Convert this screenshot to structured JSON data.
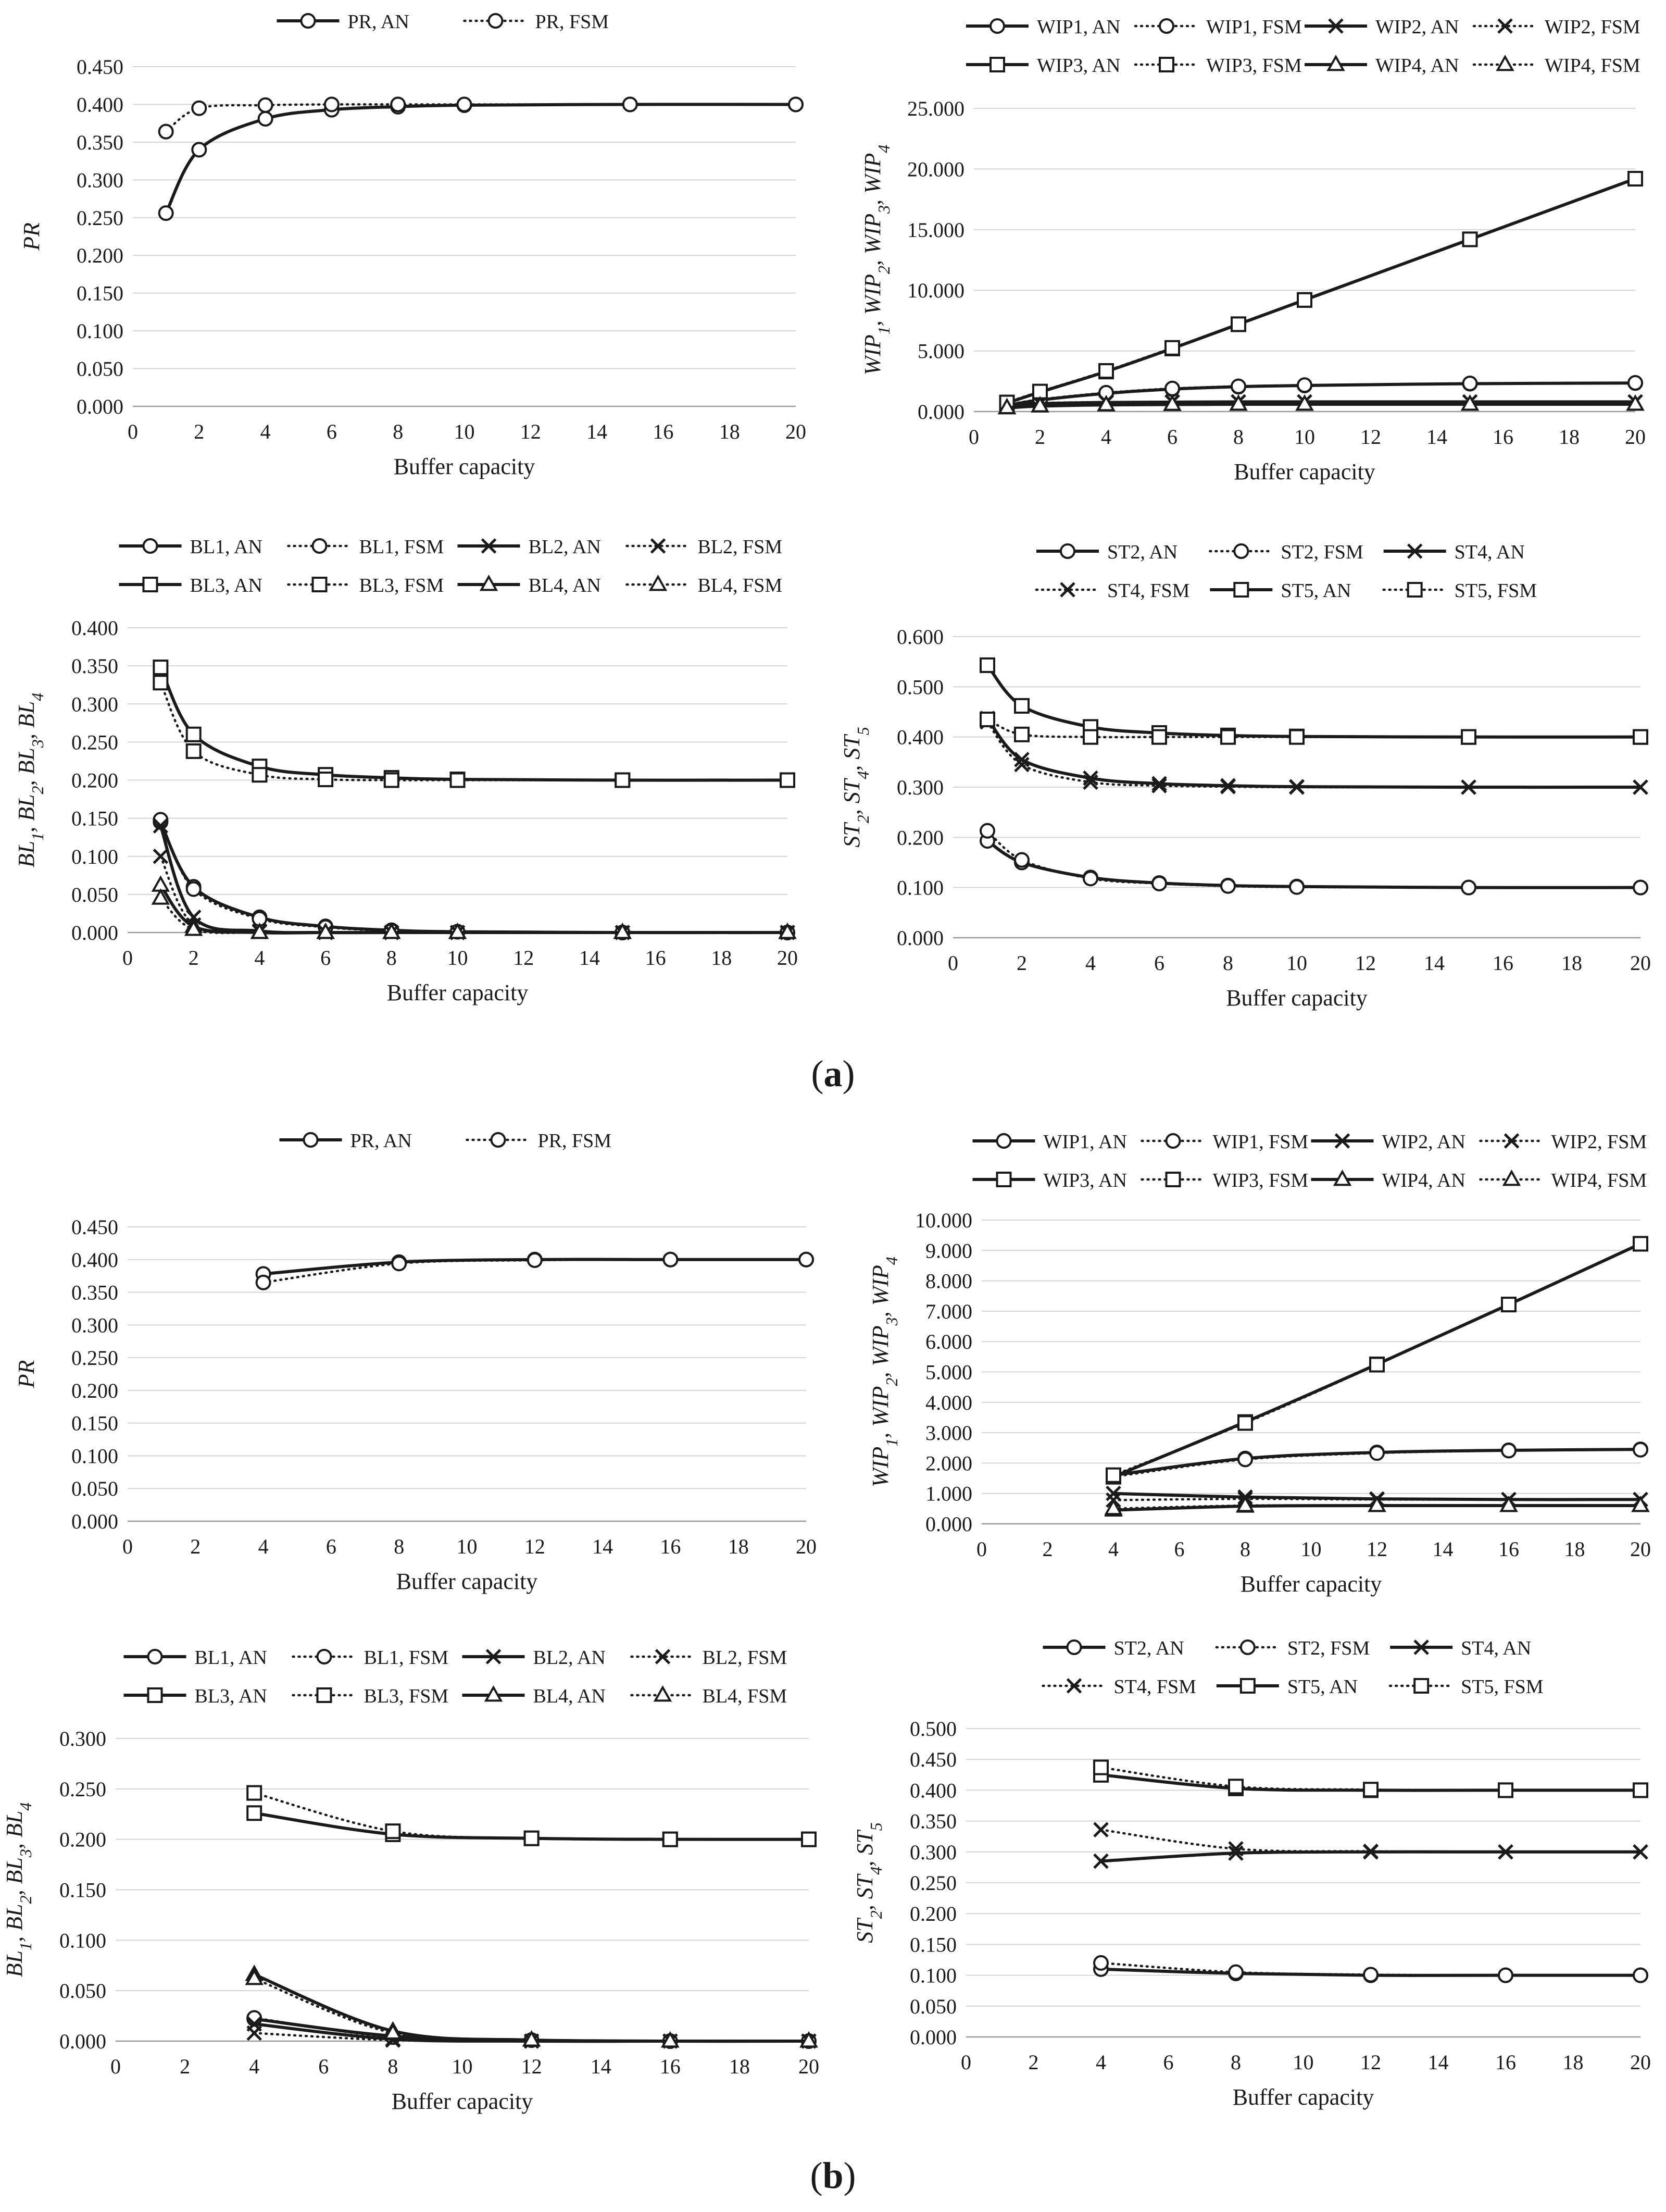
{
  "figure": {
    "panel_a_letter": "a",
    "panel_b_letter": "b"
  },
  "chart_data": [
    {
      "panel": "a",
      "type": "line",
      "title": "",
      "xlabel": "Buffer capacity",
      "ylabel": "PR",
      "xlim": [
        0,
        20
      ],
      "xticks": [
        0,
        2,
        4,
        6,
        8,
        10,
        12,
        14,
        16,
        18,
        20
      ],
      "ylim": [
        0,
        0.45
      ],
      "yticks": [
        0,
        0.05,
        0.1,
        0.15,
        0.2,
        0.25,
        0.3,
        0.35,
        0.4,
        0.45
      ],
      "ydecimals": 3,
      "grid": true,
      "legend_position": "top",
      "legend_columns": 2,
      "x": [
        1,
        2,
        4,
        6,
        8,
        10,
        15,
        20
      ],
      "series": [
        {
          "name": "PR, AN",
          "marker": "circle",
          "dash": "solid",
          "values": [
            0.256,
            0.34,
            0.381,
            0.393,
            0.397,
            0.399,
            0.4,
            0.4
          ]
        },
        {
          "name": "PR, FSM",
          "marker": "circle",
          "dash": "dotted",
          "values": [
            0.364,
            0.395,
            0.399,
            0.4,
            0.4,
            0.4,
            0.4,
            0.4
          ]
        }
      ]
    },
    {
      "panel": "a",
      "type": "line",
      "title": "",
      "xlabel": "Buffer capacity",
      "ylabel": "WIP1, WIP2, WIP3, WIP4",
      "xlim": [
        0,
        20
      ],
      "xticks": [
        0,
        2,
        4,
        6,
        8,
        10,
        12,
        14,
        16,
        18,
        20
      ],
      "ylim": [
        0,
        25
      ],
      "yticks": [
        0,
        5,
        10,
        15,
        20,
        25
      ],
      "ydecimals": 3,
      "grid": true,
      "legend_position": "top",
      "legend_columns": 4,
      "x": [
        1,
        2,
        4,
        6,
        8,
        10,
        15,
        20
      ],
      "series": [
        {
          "name": "WIP1, AN",
          "marker": "circle",
          "dash": "solid",
          "values": [
            0.5,
            0.95,
            1.5,
            1.85,
            2.05,
            2.15,
            2.3,
            2.35
          ]
        },
        {
          "name": "WIP1, FSM",
          "marker": "circle",
          "dash": "dotted",
          "values": [
            0.55,
            1.0,
            1.55,
            1.9,
            2.08,
            2.18,
            2.32,
            2.37
          ]
        },
        {
          "name": "WIP2, AN",
          "marker": "x",
          "dash": "solid",
          "values": [
            0.45,
            0.65,
            0.75,
            0.78,
            0.8,
            0.8,
            0.8,
            0.8
          ]
        },
        {
          "name": "WIP2, FSM",
          "marker": "x",
          "dash": "dotted",
          "values": [
            0.5,
            0.7,
            0.78,
            0.8,
            0.8,
            0.8,
            0.8,
            0.8
          ]
        },
        {
          "name": "WIP3, AN",
          "marker": "square",
          "dash": "solid",
          "values": [
            0.7,
            1.6,
            3.3,
            5.2,
            7.2,
            9.2,
            14.2,
            19.2
          ]
        },
        {
          "name": "WIP3, FSM",
          "marker": "square",
          "dash": "dotted",
          "values": [
            0.75,
            1.65,
            3.35,
            5.25,
            7.2,
            9.2,
            14.2,
            19.2
          ]
        },
        {
          "name": "WIP4, AN",
          "marker": "triangle",
          "dash": "solid",
          "values": [
            0.3,
            0.45,
            0.55,
            0.58,
            0.6,
            0.6,
            0.6,
            0.6
          ]
        },
        {
          "name": "WIP4, FSM",
          "marker": "triangle",
          "dash": "dotted",
          "values": [
            0.32,
            0.47,
            0.56,
            0.59,
            0.6,
            0.6,
            0.6,
            0.6
          ]
        }
      ]
    },
    {
      "panel": "a",
      "type": "line",
      "title": "",
      "xlabel": "Buffer capacity",
      "ylabel": "BL1, BL2, BL3, BL4",
      "xlim": [
        0,
        20
      ],
      "xticks": [
        0,
        2,
        4,
        6,
        8,
        10,
        12,
        14,
        16,
        18,
        20
      ],
      "ylim": [
        0,
        0.4
      ],
      "yticks": [
        0,
        0.05,
        0.1,
        0.15,
        0.2,
        0.25,
        0.3,
        0.35,
        0.4
      ],
      "ydecimals": 3,
      "grid": true,
      "legend_position": "top",
      "legend_columns": 4,
      "x": [
        1,
        2,
        4,
        6,
        8,
        10,
        15,
        20
      ],
      "series": [
        {
          "name": "BL1, AN",
          "marker": "circle",
          "dash": "solid",
          "values": [
            0.145,
            0.06,
            0.02,
            0.008,
            0.003,
            0.001,
            0.0,
            0.0
          ]
        },
        {
          "name": "BL1, FSM",
          "marker": "circle",
          "dash": "dotted",
          "values": [
            0.148,
            0.057,
            0.018,
            0.007,
            0.002,
            0.001,
            0.0,
            0.0
          ]
        },
        {
          "name": "BL2, AN",
          "marker": "x",
          "dash": "solid",
          "values": [
            0.14,
            0.02,
            0.002,
            0.0,
            0.0,
            0.0,
            0.0,
            0.0
          ]
        },
        {
          "name": "BL2, FSM",
          "marker": "x",
          "dash": "dotted",
          "values": [
            0.1,
            0.01,
            0.001,
            0.0,
            0.0,
            0.0,
            0.0,
            0.0
          ]
        },
        {
          "name": "BL3, AN",
          "marker": "square",
          "dash": "solid",
          "values": [
            0.348,
            0.26,
            0.218,
            0.207,
            0.203,
            0.201,
            0.2,
            0.2
          ]
        },
        {
          "name": "BL3, FSM",
          "marker": "square",
          "dash": "dotted",
          "values": [
            0.328,
            0.238,
            0.207,
            0.201,
            0.2,
            0.2,
            0.2,
            0.2
          ]
        },
        {
          "name": "BL4, AN",
          "marker": "triangle",
          "dash": "solid",
          "values": [
            0.062,
            0.008,
            0.0,
            0.0,
            0.0,
            0.0,
            0.0,
            0.0
          ]
        },
        {
          "name": "BL4, FSM",
          "marker": "triangle",
          "dash": "dotted",
          "values": [
            0.045,
            0.004,
            0.0,
            0.0,
            0.0,
            0.0,
            0.0,
            0.0
          ]
        }
      ]
    },
    {
      "panel": "a",
      "type": "line",
      "title": "",
      "xlabel": "Buffer capacity",
      "ylabel": "ST2, ST4, ST5",
      "xlim": [
        0,
        20
      ],
      "xticks": [
        0,
        2,
        4,
        6,
        8,
        10,
        12,
        14,
        16,
        18,
        20
      ],
      "ylim": [
        0,
        0.6
      ],
      "yticks": [
        0,
        0.1,
        0.2,
        0.3,
        0.4,
        0.5,
        0.6
      ],
      "ydecimals": 3,
      "grid": true,
      "legend_position": "top",
      "legend_columns": 3,
      "x": [
        1,
        2,
        4,
        6,
        8,
        10,
        15,
        20
      ],
      "series": [
        {
          "name": "ST2, AN",
          "marker": "circle",
          "dash": "solid",
          "values": [
            0.193,
            0.15,
            0.12,
            0.109,
            0.104,
            0.102,
            0.1,
            0.1
          ]
        },
        {
          "name": "ST2, FSM",
          "marker": "circle",
          "dash": "dotted",
          "values": [
            0.213,
            0.155,
            0.118,
            0.108,
            0.103,
            0.101,
            0.1,
            0.1
          ]
        },
        {
          "name": "ST4, AN",
          "marker": "x",
          "dash": "solid",
          "values": [
            0.437,
            0.355,
            0.318,
            0.307,
            0.303,
            0.301,
            0.3,
            0.3
          ]
        },
        {
          "name": "ST4, FSM",
          "marker": "x",
          "dash": "dotted",
          "values": [
            0.43,
            0.345,
            0.31,
            0.303,
            0.301,
            0.3,
            0.3,
            0.3
          ]
        },
        {
          "name": "ST5, AN",
          "marker": "square",
          "dash": "solid",
          "values": [
            0.543,
            0.462,
            0.42,
            0.408,
            0.403,
            0.401,
            0.4,
            0.4
          ]
        },
        {
          "name": "ST5, FSM",
          "marker": "square",
          "dash": "dotted",
          "values": [
            0.435,
            0.405,
            0.4,
            0.4,
            0.4,
            0.4,
            0.4,
            0.4
          ]
        }
      ]
    },
    {
      "panel": "b",
      "type": "line",
      "title": "",
      "xlabel": "Buffer capacity",
      "ylabel": "PR",
      "xlim": [
        0,
        20
      ],
      "xticks": [
        0,
        2,
        4,
        6,
        8,
        10,
        12,
        14,
        16,
        18,
        20
      ],
      "ylim": [
        0,
        0.45
      ],
      "yticks": [
        0,
        0.05,
        0.1,
        0.15,
        0.2,
        0.25,
        0.3,
        0.35,
        0.4,
        0.45
      ],
      "ydecimals": 3,
      "grid": true,
      "legend_position": "top",
      "legend_columns": 2,
      "x": [
        4,
        8,
        12,
        16,
        20
      ],
      "series": [
        {
          "name": "PR, AN",
          "marker": "circle",
          "dash": "solid",
          "values": [
            0.378,
            0.396,
            0.4,
            0.4,
            0.4
          ]
        },
        {
          "name": "PR, FSM",
          "marker": "circle",
          "dash": "dotted",
          "values": [
            0.365,
            0.394,
            0.399,
            0.4,
            0.4
          ]
        }
      ]
    },
    {
      "panel": "b",
      "type": "line",
      "title": "",
      "xlabel": "Buffer capacity",
      "ylabel": "WIP1, WIP2, WIP3, WIP4",
      "xlim": [
        0,
        20
      ],
      "xticks": [
        0,
        2,
        4,
        6,
        8,
        10,
        12,
        14,
        16,
        18,
        20
      ],
      "ylim": [
        0,
        10
      ],
      "yticks": [
        0,
        1,
        2,
        3,
        4,
        5,
        6,
        7,
        8,
        9,
        10
      ],
      "ydecimals": 3,
      "grid": true,
      "legend_position": "top",
      "legend_columns": 4,
      "x": [
        4,
        8,
        12,
        16,
        20
      ],
      "series": [
        {
          "name": "WIP1, AN",
          "marker": "circle",
          "dash": "solid",
          "values": [
            1.6,
            2.15,
            2.35,
            2.42,
            2.45
          ]
        },
        {
          "name": "WIP1, FSM",
          "marker": "circle",
          "dash": "dotted",
          "values": [
            1.55,
            2.12,
            2.33,
            2.41,
            2.44
          ]
        },
        {
          "name": "WIP2, AN",
          "marker": "x",
          "dash": "solid",
          "values": [
            1.0,
            0.88,
            0.82,
            0.8,
            0.8
          ]
        },
        {
          "name": "WIP2, FSM",
          "marker": "x",
          "dash": "dotted",
          "values": [
            0.78,
            0.82,
            0.8,
            0.8,
            0.8
          ]
        },
        {
          "name": "WIP3, AN",
          "marker": "square",
          "dash": "solid",
          "values": [
            1.55,
            3.35,
            5.25,
            7.22,
            9.22
          ]
        },
        {
          "name": "WIP3, FSM",
          "marker": "square",
          "dash": "dotted",
          "values": [
            1.6,
            3.32,
            5.24,
            7.22,
            9.22
          ]
        },
        {
          "name": "WIP4, AN",
          "marker": "triangle",
          "dash": "solid",
          "values": [
            0.45,
            0.58,
            0.6,
            0.6,
            0.6
          ]
        },
        {
          "name": "WIP4, FSM",
          "marker": "triangle",
          "dash": "dotted",
          "values": [
            0.5,
            0.6,
            0.6,
            0.6,
            0.6
          ]
        }
      ]
    },
    {
      "panel": "b",
      "type": "line",
      "title": "",
      "xlabel": "Buffer capacity",
      "ylabel": "BL1, BL2, BL3, BL4",
      "xlim": [
        0,
        20
      ],
      "xticks": [
        0,
        2,
        4,
        6,
        8,
        10,
        12,
        14,
        16,
        18,
        20
      ],
      "ylim": [
        0,
        0.3
      ],
      "yticks": [
        0,
        0.05,
        0.1,
        0.15,
        0.2,
        0.25,
        0.3
      ],
      "ydecimals": 3,
      "grid": true,
      "legend_position": "top",
      "legend_columns": 4,
      "x": [
        4,
        8,
        12,
        16,
        20
      ],
      "series": [
        {
          "name": "BL1, AN",
          "marker": "circle",
          "dash": "solid",
          "values": [
            0.022,
            0.005,
            0.001,
            0.0,
            0.0
          ]
        },
        {
          "name": "BL1, FSM",
          "marker": "circle",
          "dash": "dotted",
          "values": [
            0.023,
            0.004,
            0.001,
            0.0,
            0.0
          ]
        },
        {
          "name": "BL2, AN",
          "marker": "x",
          "dash": "solid",
          "values": [
            0.017,
            0.002,
            0.0,
            0.0,
            0.0
          ]
        },
        {
          "name": "BL2, FSM",
          "marker": "x",
          "dash": "dotted",
          "values": [
            0.008,
            0.001,
            0.0,
            0.0,
            0.0
          ]
        },
        {
          "name": "BL3, AN",
          "marker": "square",
          "dash": "solid",
          "values": [
            0.226,
            0.205,
            0.201,
            0.2,
            0.2
          ]
        },
        {
          "name": "BL3, FSM",
          "marker": "square",
          "dash": "dotted",
          "values": [
            0.246,
            0.208,
            0.201,
            0.2,
            0.2
          ]
        },
        {
          "name": "BL4, AN",
          "marker": "triangle",
          "dash": "solid",
          "values": [
            0.066,
            0.01,
            0.001,
            0.0,
            0.0
          ]
        },
        {
          "name": "BL4, FSM",
          "marker": "triangle",
          "dash": "dotted",
          "values": [
            0.062,
            0.008,
            0.001,
            0.0,
            0.0
          ]
        }
      ]
    },
    {
      "panel": "b",
      "type": "line",
      "title": "",
      "xlabel": "Buffer capacity",
      "ylabel": "ST2, ST4, ST5",
      "xlim": [
        0,
        20
      ],
      "xticks": [
        0,
        2,
        4,
        6,
        8,
        10,
        12,
        14,
        16,
        18,
        20
      ],
      "ylim": [
        0,
        0.5
      ],
      "yticks": [
        0,
        0.05,
        0.1,
        0.15,
        0.2,
        0.25,
        0.3,
        0.35,
        0.4,
        0.45,
        0.5
      ],
      "ydecimals": 3,
      "grid": true,
      "legend_position": "top",
      "legend_columns": 3,
      "x": [
        4,
        8,
        12,
        16,
        20
      ],
      "series": [
        {
          "name": "ST2, AN",
          "marker": "circle",
          "dash": "solid",
          "values": [
            0.11,
            0.103,
            0.1,
            0.1,
            0.1
          ]
        },
        {
          "name": "ST2, FSM",
          "marker": "circle",
          "dash": "dotted",
          "values": [
            0.12,
            0.105,
            0.101,
            0.1,
            0.1
          ]
        },
        {
          "name": "ST4, AN",
          "marker": "x",
          "dash": "solid",
          "values": [
            0.285,
            0.298,
            0.3,
            0.3,
            0.3
          ]
        },
        {
          "name": "ST4, FSM",
          "marker": "x",
          "dash": "dotted",
          "values": [
            0.336,
            0.305,
            0.301,
            0.3,
            0.3
          ]
        },
        {
          "name": "ST5, AN",
          "marker": "square",
          "dash": "solid",
          "values": [
            0.425,
            0.403,
            0.4,
            0.4,
            0.4
          ]
        },
        {
          "name": "ST5, FSM",
          "marker": "square",
          "dash": "dotted",
          "values": [
            0.437,
            0.406,
            0.401,
            0.4,
            0.4
          ]
        }
      ]
    }
  ]
}
